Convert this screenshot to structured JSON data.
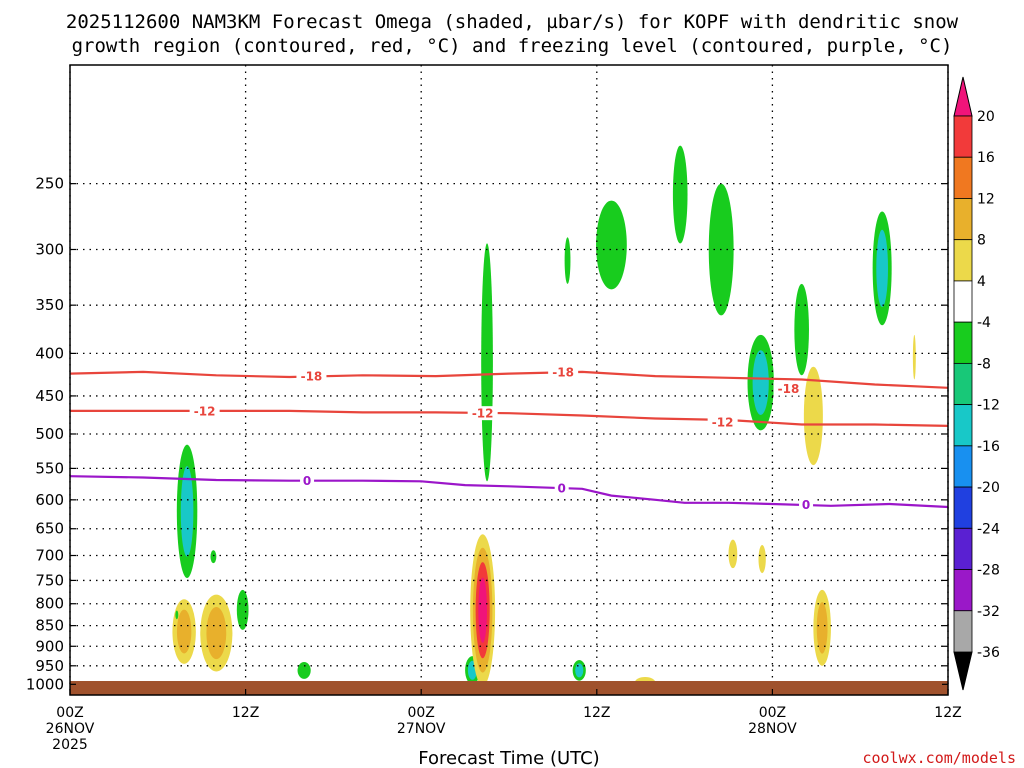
{
  "title_line1": "2025112600 NAM3KM Forecast Omega (shaded, µbar/s) for KOPF with dendritic snow",
  "title_line2": "growth region (contoured, red, °C) and freezing level (contoured, purple, °C)",
  "credit": "coolwx.com/models",
  "colors": {
    "red_contour": "#e8453c",
    "purple_contour": "#9b16c9",
    "terrain": "#a0522d"
  },
  "chart_data": {
    "type": "heatmap",
    "title": "2025112600 NAM3KM Forecast Omega (shaded, µbar/s) for KOPF with dendritic snow growth region (contoured, red, °C) and freezing level (contoured, purple, °C)",
    "xlabel": "Forecast Time (UTC)",
    "ylabel": "",
    "x_range_hours": [
      0,
      60
    ],
    "y_range_hpa": [
      1030,
      180
    ],
    "y_scale": "log-pressure",
    "grid": true,
    "x_ticks": [
      {
        "hour": 0,
        "lines": [
          "00Z",
          "26NOV",
          "2025"
        ]
      },
      {
        "hour": 12,
        "lines": [
          "12Z"
        ]
      },
      {
        "hour": 24,
        "lines": [
          "00Z",
          "27NOV"
        ]
      },
      {
        "hour": 36,
        "lines": [
          "12Z"
        ]
      },
      {
        "hour": 48,
        "lines": [
          "00Z",
          "28NOV"
        ]
      },
      {
        "hour": 60,
        "lines": [
          "12Z"
        ]
      }
    ],
    "y_ticks": [
      250,
      300,
      350,
      400,
      450,
      500,
      550,
      600,
      650,
      700,
      750,
      800,
      850,
      900,
      950,
      1000
    ],
    "colorbar": {
      "levels": [
        20,
        16,
        12,
        8,
        4,
        -4,
        -8,
        -12,
        -16,
        -20,
        -24,
        -28,
        -32,
        -36
      ],
      "bands": [
        {
          "from": 16,
          "to": 20,
          "color": "#f23a3a"
        },
        {
          "from": 12,
          "to": 16,
          "color": "#f07820"
        },
        {
          "from": 8,
          "to": 12,
          "color": "#e8b02c"
        },
        {
          "from": 4,
          "to": 8,
          "color": "#ecd94a"
        },
        {
          "from": -4,
          "to": 4,
          "color": "#ffffff"
        },
        {
          "from": -8,
          "to": -4,
          "color": "#18cc1e"
        },
        {
          "from": -12,
          "to": -8,
          "color": "#18c878"
        },
        {
          "from": -16,
          "to": -12,
          "color": "#18c8c8"
        },
        {
          "from": -20,
          "to": -16,
          "color": "#1890f0"
        },
        {
          "from": -24,
          "to": -20,
          "color": "#2040e0"
        },
        {
          "from": -28,
          "to": -24,
          "color": "#5a20d2"
        },
        {
          "from": -32,
          "to": -28,
          "color": "#9a18c8"
        },
        {
          "from": -36,
          "to": -32,
          "color": "#a8a8a8"
        }
      ],
      "top_arrow_color": "#f0147a",
      "bottom_arrow_color": "#000000"
    },
    "series": [
      {
        "label": "-18",
        "color": "#e8453c",
        "points": [
          [
            0,
            423
          ],
          [
            5,
            421
          ],
          [
            10,
            425
          ],
          [
            15,
            427
          ],
          [
            20,
            425
          ],
          [
            25,
            426
          ],
          [
            30,
            423
          ],
          [
            35,
            421
          ],
          [
            40,
            426
          ],
          [
            45,
            428
          ],
          [
            50,
            430
          ],
          [
            55,
            436
          ],
          [
            60,
            440
          ]
        ]
      },
      {
        "label": "-12",
        "color": "#e8453c",
        "points": [
          [
            0,
            469
          ],
          [
            5,
            469
          ],
          [
            10,
            469
          ],
          [
            15,
            469
          ],
          [
            20,
            471
          ],
          [
            25,
            471
          ],
          [
            30,
            472
          ],
          [
            35,
            475
          ],
          [
            40,
            479
          ],
          [
            45,
            481
          ],
          [
            50,
            487
          ],
          [
            55,
            487
          ],
          [
            60,
            489
          ]
        ]
      },
      {
        "label": "0",
        "color": "#9b16c9",
        "points": [
          [
            0,
            562
          ],
          [
            5,
            564
          ],
          [
            10,
            568
          ],
          [
            15,
            569
          ],
          [
            20,
            569
          ],
          [
            24,
            570
          ],
          [
            27,
            576
          ],
          [
            30,
            578
          ],
          [
            35,
            582
          ],
          [
            37,
            593
          ],
          [
            40,
            600
          ],
          [
            42,
            605
          ],
          [
            45,
            605
          ],
          [
            48,
            607
          ],
          [
            52,
            610
          ],
          [
            56,
            607
          ],
          [
            60,
            612
          ]
        ]
      }
    ],
    "contour_labels": [
      {
        "text": "-18",
        "hour": 16.5,
        "hpa": 426,
        "color": "#e8453c"
      },
      {
        "text": "-18",
        "hour": 33.7,
        "hpa": 421,
        "color": "#e8453c"
      },
      {
        "text": "-18",
        "hour": 49.1,
        "hpa": 441,
        "color": "#e8453c"
      },
      {
        "text": "-12",
        "hour": 9.2,
        "hpa": 469,
        "color": "#e8453c"
      },
      {
        "text": "-12",
        "hour": 28.2,
        "hpa": 472,
        "color": "#e8453c"
      },
      {
        "text": "-12",
        "hour": 44.6,
        "hpa": 484,
        "color": "#e8453c"
      },
      {
        "text": "0",
        "hour": 16.2,
        "hpa": 569,
        "color": "#9b16c9"
      },
      {
        "text": "0",
        "hour": 33.6,
        "hpa": 581,
        "color": "#9b16c9"
      },
      {
        "text": "0",
        "hour": 50.3,
        "hpa": 608,
        "color": "#9b16c9"
      }
    ],
    "omega_blobs": [
      {
        "hour": 8.0,
        "hpa": 630,
        "width_h": 1.4,
        "hpa_top": 515,
        "hpa_bot": 745,
        "values": [
          -4,
          -12
        ]
      },
      {
        "hour": 9.8,
        "hpa": 700,
        "width_h": 0.4,
        "hpa_top": 690,
        "hpa_bot": 715,
        "values": [
          -4
        ]
      },
      {
        "hour": 7.8,
        "hpa": 865,
        "width_h": 1.6,
        "hpa_top": 790,
        "hpa_bot": 945,
        "values": [
          4,
          8
        ]
      },
      {
        "hour": 10.0,
        "hpa": 870,
        "width_h": 2.2,
        "hpa_top": 780,
        "hpa_bot": 965,
        "values": [
          4,
          8
        ]
      },
      {
        "hour": 7.3,
        "hpa": 825,
        "width_h": 0.2,
        "hpa_top": 815,
        "hpa_bot": 835,
        "values": [
          -4
        ]
      },
      {
        "hour": 11.8,
        "hpa": 815,
        "width_h": 0.8,
        "hpa_top": 770,
        "hpa_bot": 860,
        "values": [
          -4
        ]
      },
      {
        "hour": 16.0,
        "hpa": 960,
        "width_h": 0.9,
        "hpa_top": 940,
        "hpa_bot": 985,
        "values": [
          -4
        ]
      },
      {
        "hour": 27.5,
        "hpa": 960,
        "width_h": 1.0,
        "hpa_top": 925,
        "hpa_bot": 1000,
        "values": [
          -4,
          -12
        ]
      },
      {
        "hour": 28.5,
        "hpa": 430,
        "width_h": 0.8,
        "hpa_top": 295,
        "hpa_bot": 570,
        "values": [
          -4
        ]
      },
      {
        "hour": 28.2,
        "hpa": 830,
        "width_h": 1.7,
        "hpa_top": 660,
        "hpa_bot": 1005,
        "values": [
          4,
          8,
          16,
          20
        ]
      },
      {
        "hour": 34.0,
        "hpa": 310,
        "width_h": 0.4,
        "hpa_top": 290,
        "hpa_bot": 330,
        "values": [
          -4
        ]
      },
      {
        "hour": 37.0,
        "hpa": 295,
        "width_h": 2.1,
        "hpa_top": 262,
        "hpa_bot": 335,
        "values": [
          -4
        ]
      },
      {
        "hour": 34.8,
        "hpa": 960,
        "width_h": 0.9,
        "hpa_top": 935,
        "hpa_bot": 990,
        "values": [
          -4,
          -12
        ]
      },
      {
        "hour": 39.3,
        "hpa": 995,
        "width_h": 1.4,
        "hpa_top": 980,
        "hpa_bot": 1010,
        "values": [
          4
        ]
      },
      {
        "hour": 41.7,
        "hpa": 255,
        "width_h": 1.0,
        "hpa_top": 225,
        "hpa_bot": 295,
        "values": [
          -4
        ]
      },
      {
        "hour": 44.5,
        "hpa": 300,
        "width_h": 1.7,
        "hpa_top": 250,
        "hpa_bot": 360,
        "values": [
          -4
        ]
      },
      {
        "hour": 47.2,
        "hpa": 440,
        "width_h": 1.8,
        "hpa_top": 380,
        "hpa_bot": 495,
        "values": [
          -4,
          -12
        ]
      },
      {
        "hour": 50.0,
        "hpa": 375,
        "width_h": 1.0,
        "hpa_top": 330,
        "hpa_bot": 425,
        "values": [
          -4
        ]
      },
      {
        "hour": 50.8,
        "hpa": 480,
        "width_h": 1.3,
        "hpa_top": 415,
        "hpa_bot": 545,
        "values": [
          4
        ]
      },
      {
        "hour": 55.5,
        "hpa": 320,
        "width_h": 1.3,
        "hpa_top": 270,
        "hpa_bot": 370,
        "values": [
          -4,
          -12
        ]
      },
      {
        "hour": 57.7,
        "hpa": 405,
        "width_h": 0.2,
        "hpa_top": 380,
        "hpa_bot": 430,
        "values": [
          4
        ]
      },
      {
        "hour": 45.3,
        "hpa": 695,
        "width_h": 0.6,
        "hpa_top": 670,
        "hpa_bot": 725,
        "values": [
          4
        ]
      },
      {
        "hour": 47.3,
        "hpa": 705,
        "width_h": 0.5,
        "hpa_top": 680,
        "hpa_bot": 735,
        "values": [
          4
        ]
      },
      {
        "hour": 51.4,
        "hpa": 860,
        "width_h": 1.2,
        "hpa_top": 770,
        "hpa_bot": 950,
        "values": [
          4,
          8
        ]
      }
    ]
  }
}
